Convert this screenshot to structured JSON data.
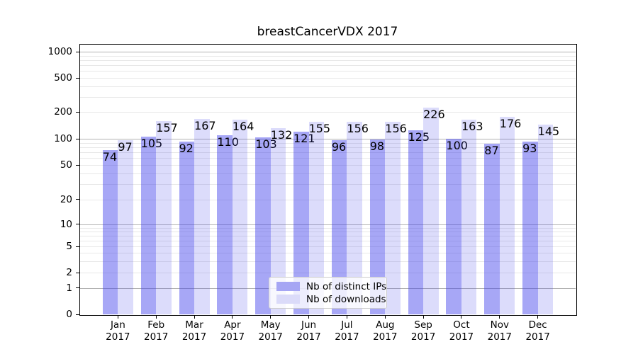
{
  "title": "breastCancerVDX 2017",
  "chart_data": {
    "type": "bar",
    "title": "breastCancerVDX 2017",
    "categories": [
      "Jan",
      "Feb",
      "Mar",
      "Apr",
      "May",
      "Jun",
      "Jul",
      "Aug",
      "Sep",
      "Oct",
      "Nov",
      "Dec"
    ],
    "year": "2017",
    "series": [
      {
        "name": "Nb of distinct IPs",
        "color": "#a6a6f4",
        "fill": "rgba(60,60,235,0.45)",
        "values": [
          74,
          105,
          92,
          110,
          103,
          121,
          96,
          98,
          125,
          100,
          87,
          93
        ]
      },
      {
        "name": "Nb of downloads",
        "color": "#dbdbf9",
        "fill": "rgba(60,60,235,0.18)",
        "values": [
          97,
          157,
          167,
          164,
          132,
          155,
          156,
          156,
          226,
          163,
          176,
          145
        ]
      }
    ],
    "y_ticks": [
      0,
      1,
      2,
      5,
      10,
      20,
      50,
      100,
      200,
      500,
      1000
    ],
    "y_scale": "symlog",
    "ylim": [
      0,
      1400
    ],
    "xlabel": "",
    "ylabel": "",
    "grid": true,
    "legend_position": "lower center",
    "colors": {
      "major_grid": "#b2b2b2",
      "minor_grid": "#e8e8e8",
      "spine": "#000000",
      "background": "#ffffff"
    }
  }
}
